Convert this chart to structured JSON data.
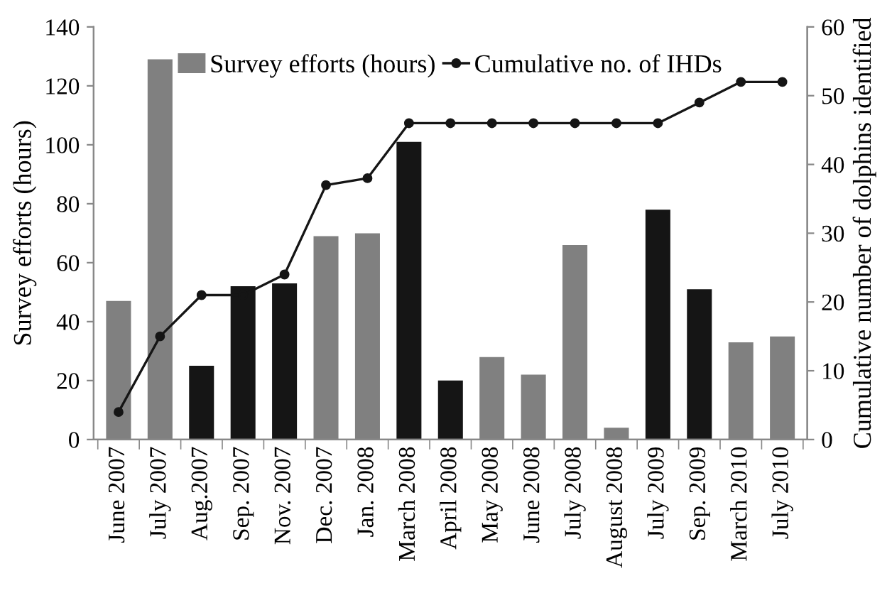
{
  "chart_data": {
    "type": "bar",
    "ylabel": "Survey efforts (hours)",
    "y2label": "Cumulative number of dolphins identified",
    "categories": [
      "June 2007",
      "July 2007",
      "Aug.2007",
      "Sep. 2007",
      "Nov. 2007",
      "Dec. 2007",
      "Jan. 2008",
      "March 2008",
      "April 2008",
      "May 2008",
      "June 2008",
      "July 2008",
      "August 2008",
      "July 2009",
      "Sep. 2009",
      "March 2010",
      "July 2010"
    ],
    "series": [
      {
        "name": "Survey efforts (hours)",
        "color": "#808080",
        "colors": [
          "#808080",
          "#808080",
          "#151515",
          "#151515",
          "#151515",
          "#808080",
          "#808080",
          "#151515",
          "#151515",
          "#808080",
          "#808080",
          "#808080",
          "#808080",
          "#151515",
          "#151515",
          "#808080",
          "#808080"
        ],
        "values": [
          47,
          129,
          25,
          52,
          53,
          69,
          70,
          101,
          20,
          28,
          22,
          66,
          4,
          78,
          51,
          33,
          35
        ]
      },
      {
        "name": "Cumulative no. of IHDs",
        "type": "line",
        "axis": "y2",
        "color": "#151515",
        "marker": "circle",
        "line_style": "solid",
        "values": [
          4,
          15,
          21,
          21,
          24,
          37,
          38,
          46,
          46,
          46,
          46,
          46,
          46,
          46,
          49,
          52,
          52
        ]
      }
    ],
    "ylim": [
      0,
      140
    ],
    "yticks": [
      0,
      20,
      40,
      60,
      80,
      100,
      120,
      140
    ],
    "y2lim": [
      0,
      60
    ],
    "y2ticks": [
      0,
      10,
      20,
      30,
      40,
      50,
      60
    ],
    "grid": false,
    "legend": "top"
  }
}
